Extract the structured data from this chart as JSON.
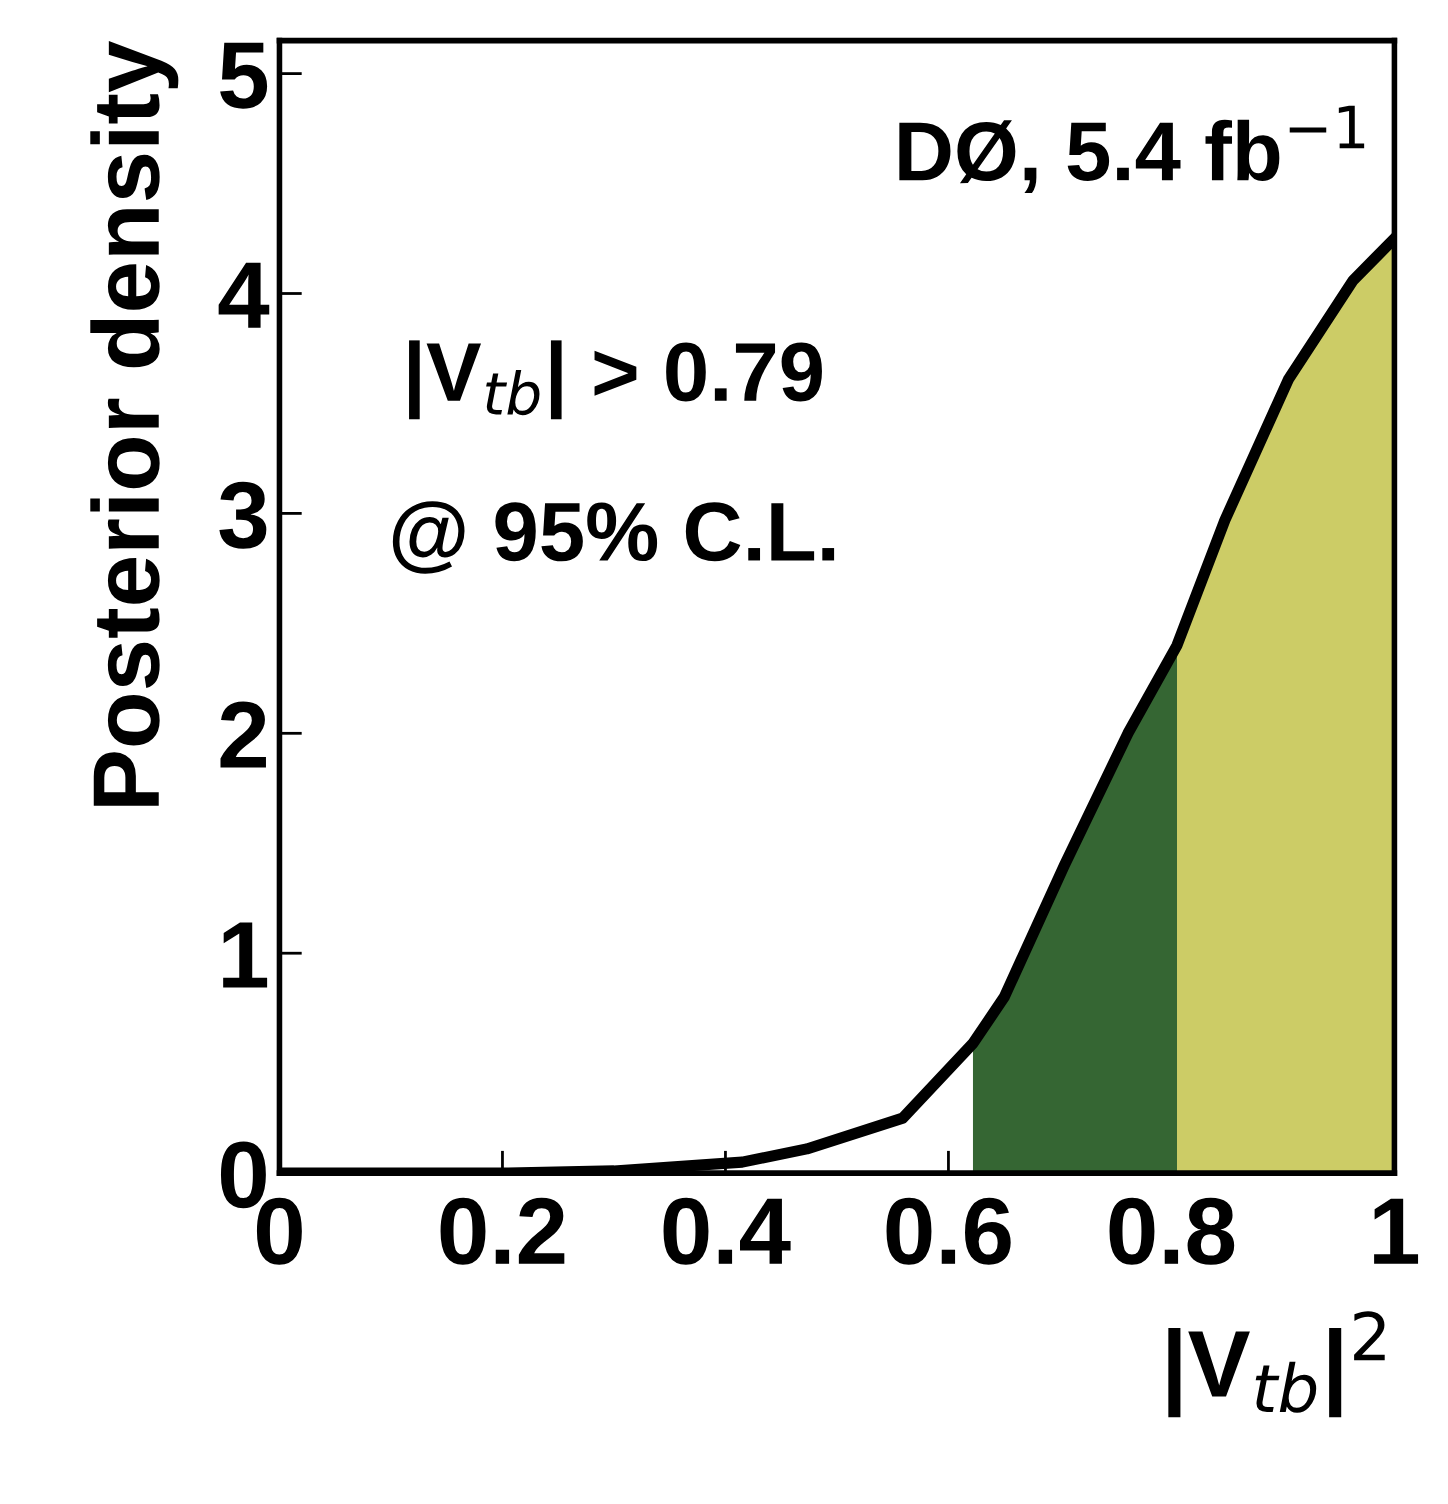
{
  "chart_data": {
    "type": "line",
    "xlabel": "|V$_{tb}$|$^{2}$",
    "ylabel": "Posterior density",
    "annotations": [
      "DØ, 5.4 fb$^{−1}$",
      "|V$_{tb}$| > 0.79",
      "@ 95% C.L."
    ],
    "xlim": [
      0,
      1
    ],
    "ylim": [
      0,
      5.15
    ],
    "xticks": [
      0,
      0.2,
      0.4,
      0.6,
      0.8,
      1
    ],
    "yticks": [
      0,
      1,
      2,
      3,
      4,
      5
    ],
    "grid": false,
    "legend": false,
    "marker": "none",
    "line_style": "solid",
    "series": [
      {
        "type": "area",
        "color": "#356633",
        "x": [
          0.622,
          0.65,
          0.704,
          0.761,
          0.805
        ],
        "values": [
          0.59,
          0.8,
          1.4,
          2.0,
          2.4
        ]
      },
      {
        "type": "area",
        "color": "#cccc66",
        "x": [
          0.805,
          0.848,
          0.905,
          0.963,
          1.0
        ],
        "values": [
          2.4,
          2.97,
          3.61,
          4.06,
          4.25
        ]
      },
      {
        "color": "#000000",
        "x": [
          0,
          0.2,
          0.3,
          0.415,
          0.473,
          0.559,
          0.622,
          0.65,
          0.704,
          0.761,
          0.805,
          0.848,
          0.905,
          0.963,
          1.0
        ],
        "values": [
          0,
          0,
          0.01,
          0.05,
          0.11,
          0.25,
          0.59,
          0.8,
          1.4,
          2.0,
          2.4,
          2.97,
          3.61,
          4.06,
          4.25
        ]
      }
    ]
  }
}
